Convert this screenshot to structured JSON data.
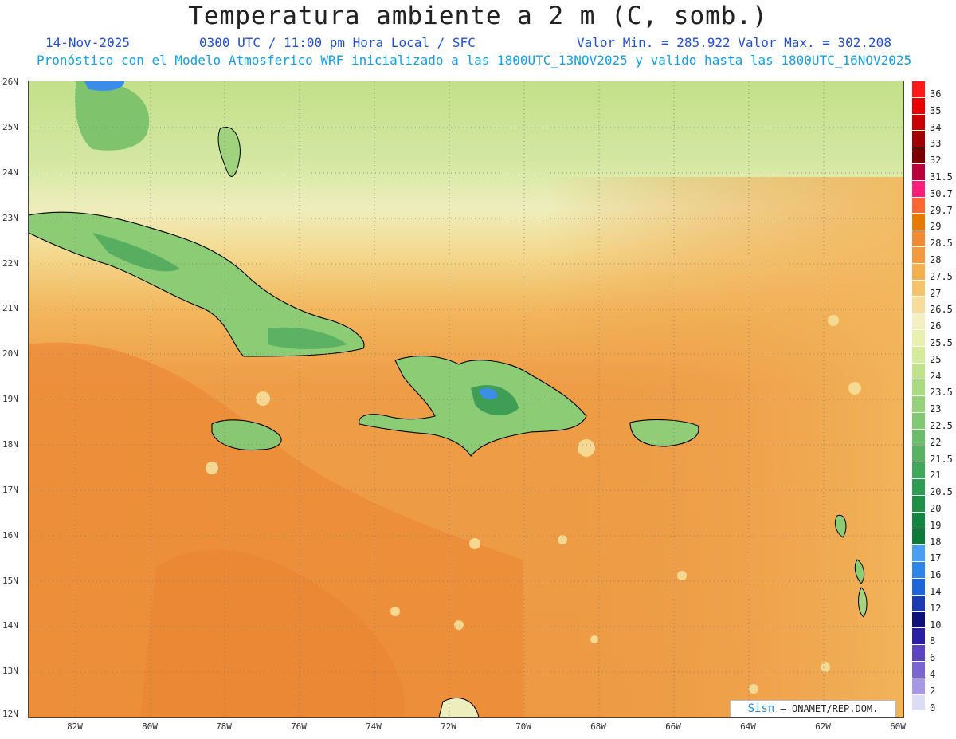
{
  "header": {
    "title": "Temperatura ambiente a 2 m (C, somb.)",
    "date": "14-Nov-2025",
    "time": "0300 UTC / 11:00 pm Hora Local / SFC",
    "min_max": "Valor Min. = 285.922  Valor Max. = 302.208",
    "model": "Pronóstico con el Modelo Atmosferico WRF inicializado a las 1800UTC_13NOV2025 y valido hasta las  1800UTC_16NOV2025"
  },
  "axes": {
    "lat_labels": [
      "26N",
      "25N",
      "24N",
      "23N",
      "22N",
      "21N",
      "20N",
      "19N",
      "18N",
      "17N",
      "16N",
      "15N",
      "14N",
      "13N",
      "12N"
    ],
    "lon_labels": [
      "82W",
      "80W",
      "78W",
      "76W",
      "74W",
      "72W",
      "70W",
      "68W",
      "66W",
      "64W",
      "62W",
      "60W"
    ]
  },
  "legend": {
    "labels": [
      "36",
      "35",
      "34",
      "33",
      "32",
      "31.5",
      "30.7",
      "29.7",
      "29",
      "28.5",
      "28",
      "27.5",
      "27",
      "26.5",
      "26",
      "25.5",
      "25",
      "24",
      "23.5",
      "23",
      "22.5",
      "22",
      "21.5",
      "21",
      "20.5",
      "20",
      "19",
      "18",
      "17",
      "16",
      "14",
      "12",
      "10",
      "8",
      "6",
      "4",
      "2",
      "0"
    ],
    "colors": [
      "#ff1a1a",
      "#e60000",
      "#c80000",
      "#a00000",
      "#7a0000",
      "#b8003c",
      "#ff1f7a",
      "#ff6633",
      "#e67a00",
      "#f08a33",
      "#f29a3d",
      "#f5b04e",
      "#f5c46a",
      "#f7dc9a",
      "#f4f0c4",
      "#e8f0b0",
      "#d4eb9a",
      "#bfe38a",
      "#aadb80",
      "#95d27a",
      "#80c872",
      "#6abe6a",
      "#55b362",
      "#40a85a",
      "#2e9c52",
      "#1f9048",
      "#138540",
      "#0c7a38",
      "#4a9ff0",
      "#2d86e6",
      "#1c66d6",
      "#1a3cb0",
      "#10107a",
      "#2a1fa0",
      "#5a44c0",
      "#7a66d0",
      "#a899e6",
      "#dcdcf5"
    ]
  },
  "credit": {
    "sis": "Sisπ",
    "org": " – ONAMET/REP.DOM."
  },
  "map_colors": {
    "sea_warm": "#ef9a44",
    "sea_hot": "#ec8a38",
    "sea_mild": "#f2b65c",
    "north_cool": "#c8e28e",
    "land_green": "#7cc46e",
    "land_dark": "#4aa65a",
    "peak_blue": "#3b8ee8",
    "coast": "#000000"
  }
}
